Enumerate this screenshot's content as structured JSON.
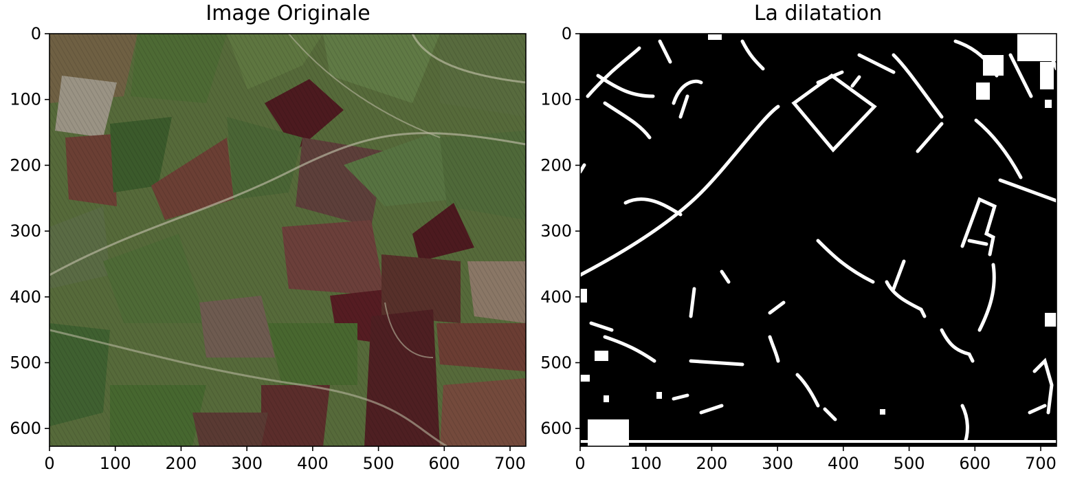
{
  "figure": {
    "background": "#ffffff"
  },
  "chart_data": [
    {
      "type": "image",
      "title": "Image Originale",
      "xlabel": "",
      "ylabel": "",
      "xlim": [
        0,
        724
      ],
      "ylim": [
        627,
        0
      ],
      "xticks": [
        0,
        100,
        200,
        300,
        400,
        500,
        600,
        700
      ],
      "yticks": [
        0,
        100,
        200,
        300,
        400,
        500,
        600
      ],
      "grid": false,
      "content": "satellite photo of agricultural field parcels",
      "colors": {
        "green_field": "#4d6a34",
        "dark_green_field": "#3b5a2b",
        "brown_field": "#6b3f34",
        "dark_red_field": "#4c1a1f",
        "pale_field": "#8a8868",
        "track": "#b7b59e"
      }
    },
    {
      "type": "image",
      "title": "La dilatation",
      "xlabel": "",
      "ylabel": "",
      "xlim": [
        0,
        724
      ],
      "ylim": [
        627,
        0
      ],
      "xticks": [
        0,
        100,
        200,
        300,
        400,
        500,
        600,
        700
      ],
      "yticks": [
        0,
        100,
        200,
        300,
        400,
        500,
        600
      ],
      "grid": false,
      "content": "binary mask after dilation: white detected edges on black",
      "colors": {
        "background": "#000000",
        "foreground": "#ffffff"
      }
    }
  ]
}
